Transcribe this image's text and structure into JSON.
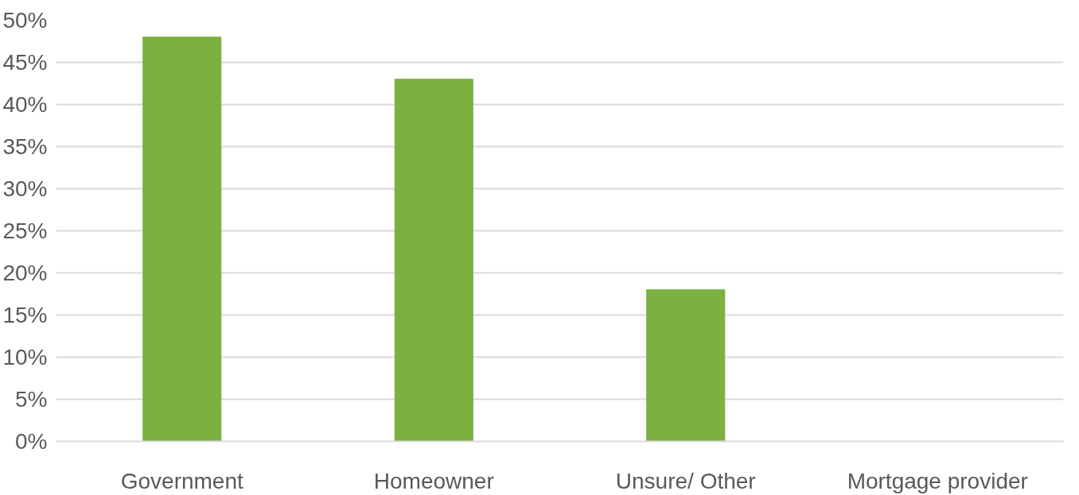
{
  "chart_data": {
    "type": "bar",
    "categories": [
      "Government",
      "Homeowner",
      "Unsure/ Other",
      "Mortgage provider"
    ],
    "values": [
      48,
      43,
      18,
      0
    ],
    "color": "#7cb142",
    "ylim": [
      0,
      50
    ],
    "yticks": [
      {
        "value": 0,
        "label": "0%"
      },
      {
        "value": 5,
        "label": "5%"
      },
      {
        "value": 10,
        "label": "10%"
      },
      {
        "value": 15,
        "label": "15%"
      },
      {
        "value": 20,
        "label": "20%"
      },
      {
        "value": 25,
        "label": "25%"
      },
      {
        "value": 30,
        "label": "30%"
      },
      {
        "value": 35,
        "label": "35%"
      },
      {
        "value": 40,
        "label": "40%"
      },
      {
        "value": 45,
        "label": "45%"
      },
      {
        "value": 50,
        "label": "50%"
      }
    ],
    "grid": "y"
  }
}
